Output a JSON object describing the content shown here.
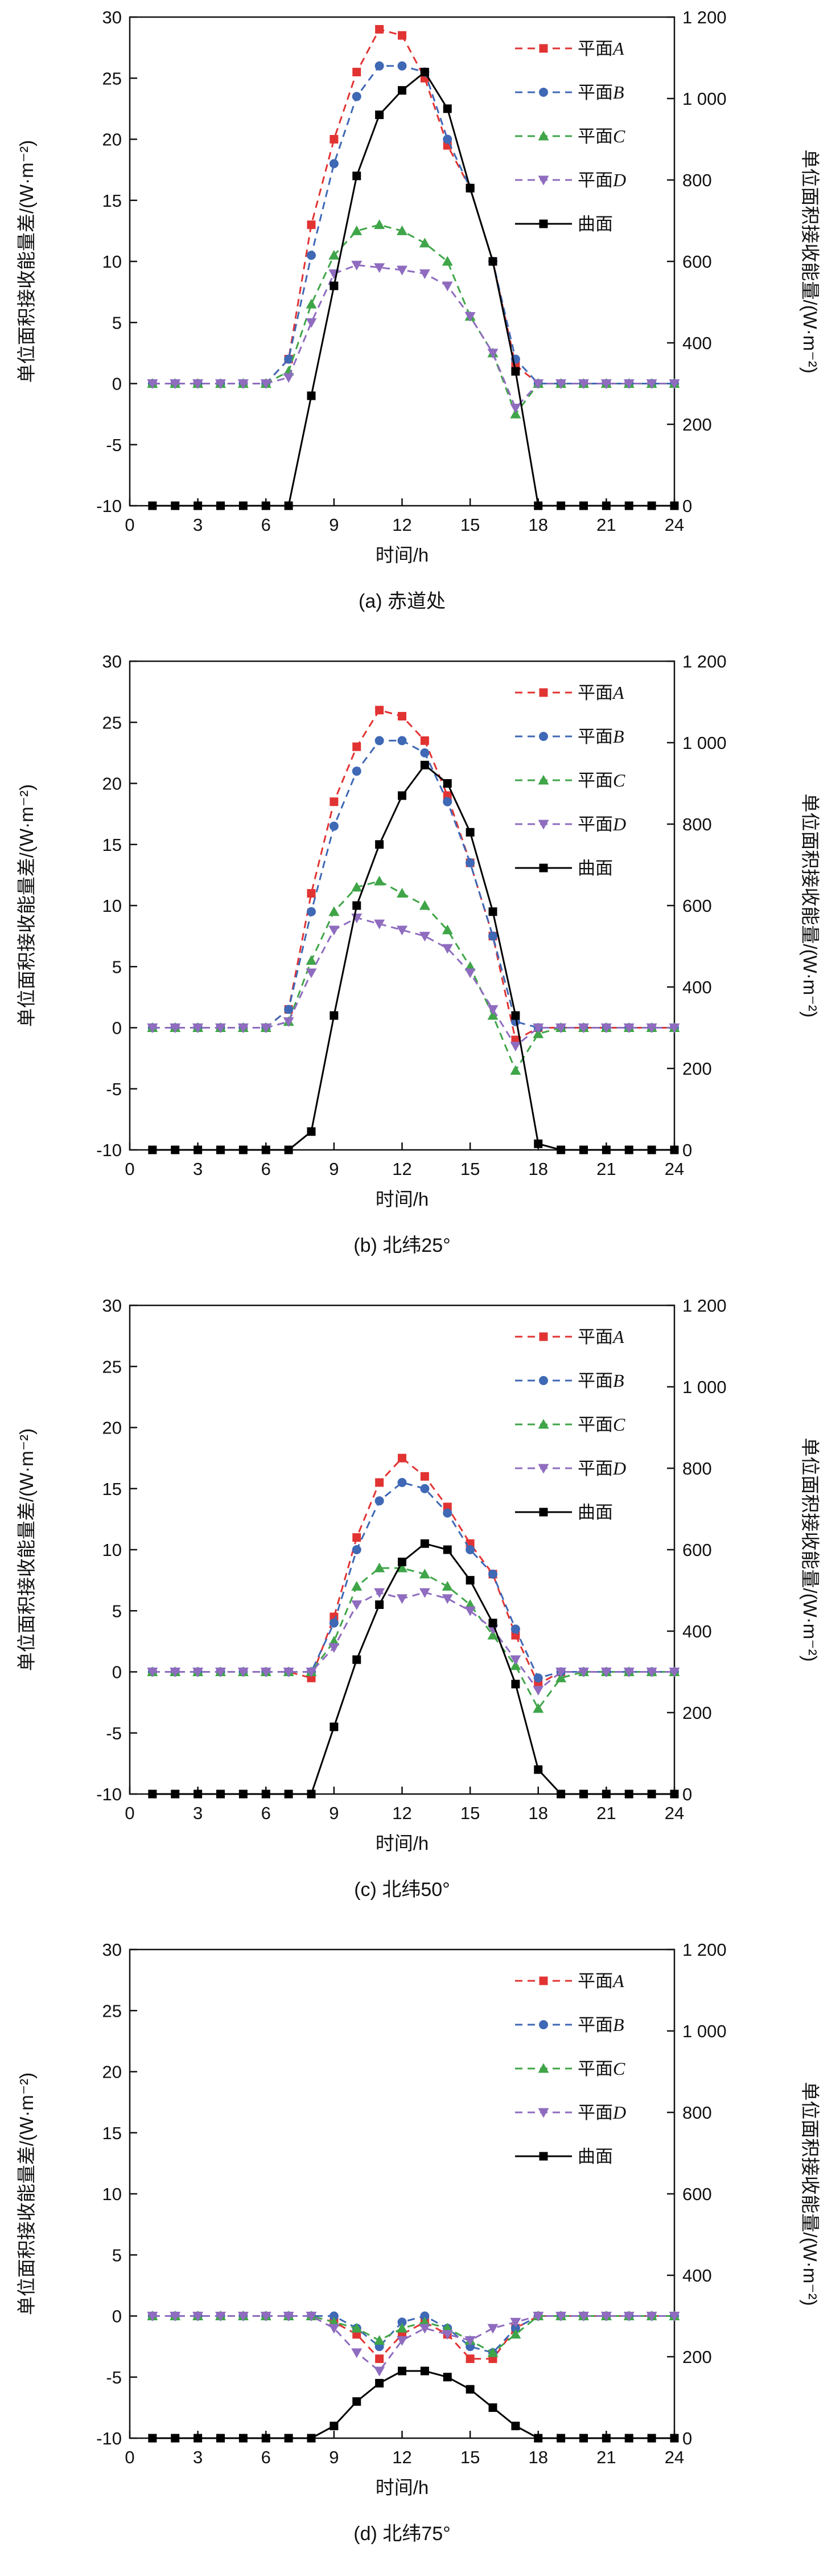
{
  "page": {
    "background": "#ffffff"
  },
  "chart_data": {
    "type": "line",
    "hours": [
      1,
      2,
      3,
      4,
      5,
      6,
      7,
      8,
      9,
      10,
      11,
      12,
      13,
      14,
      15,
      16,
      17,
      18,
      19,
      20,
      21,
      22,
      23,
      24
    ],
    "axis": {
      "x": {
        "label": "时间/h",
        "min": 0,
        "max": 24,
        "ticks": [
          0,
          3,
          6,
          9,
          12,
          15,
          18,
          21,
          24
        ],
        "tick_labels": [
          "0",
          "3",
          "6",
          "9",
          "12",
          "15",
          "18",
          "21",
          "24"
        ]
      },
      "y_left": {
        "label": "单位面积接收能量差/(W·m⁻²)",
        "min": -10,
        "max": 30,
        "ticks": [
          -10,
          -5,
          0,
          5,
          10,
          15,
          20,
          25,
          30
        ],
        "tick_labels": [
          "-10",
          "-5",
          "0",
          "5",
          "10",
          "15",
          "20",
          "25",
          "30"
        ]
      },
      "y_right": {
        "label": "单位面积接收能量/(W·m⁻²)",
        "min": 0,
        "max": 1200,
        "ticks": [
          0,
          200,
          400,
          600,
          800,
          1000,
          1200
        ],
        "tick_labels": [
          "0",
          "200",
          "400",
          "600",
          "800",
          "1 000",
          "1 200"
        ]
      }
    },
    "legend_position": "upper-right-inside",
    "series_meta": [
      {
        "key": "A",
        "label": "平面A",
        "color": "#e23333",
        "marker": "square",
        "line": "dashed",
        "axis": "left"
      },
      {
        "key": "B",
        "label": "平面B",
        "color": "#3f68b5",
        "marker": "circle",
        "line": "dashed",
        "axis": "left"
      },
      {
        "key": "C",
        "label": "平面C",
        "color": "#3fa548",
        "marker": "triangle-up",
        "line": "dashed",
        "axis": "left"
      },
      {
        "key": "D",
        "label": "平面D",
        "color": "#8f6cbf",
        "marker": "triangle-down",
        "line": "dashed",
        "axis": "left"
      },
      {
        "key": "S",
        "label": "曲面",
        "color": "#000000",
        "marker": "square",
        "line": "solid",
        "axis": "right"
      }
    ],
    "charts": [
      {
        "id": "a",
        "caption": "(a) 赤道处",
        "series": {
          "A": [
            0,
            0,
            0,
            0,
            0,
            0,
            2,
            13,
            20,
            25.5,
            29,
            28.5,
            25,
            19.5,
            16,
            10,
            1.5,
            0,
            0,
            0,
            0,
            0,
            0,
            0
          ],
          "B": [
            0,
            0,
            0,
            0,
            0,
            0,
            2,
            10.5,
            18,
            23.5,
            26,
            26,
            25.5,
            20,
            16,
            10,
            2,
            0,
            0,
            0,
            0,
            0,
            0,
            0
          ],
          "C": [
            0,
            0,
            0,
            0,
            0,
            0,
            1,
            6.5,
            10.5,
            12.5,
            13,
            12.5,
            11.5,
            10,
            5.5,
            2.5,
            -2.5,
            0,
            0,
            0,
            0,
            0,
            0,
            0
          ],
          "D": [
            0,
            0,
            0,
            0,
            0,
            0,
            0.5,
            5,
            9,
            9.7,
            9.5,
            9.3,
            9,
            8,
            5.5,
            2.5,
            -2,
            0,
            0,
            0,
            0,
            0,
            0,
            0
          ],
          "S": [
            0,
            0,
            0,
            0,
            0,
            0,
            0,
            270,
            540,
            810,
            960,
            1020,
            1065,
            975,
            780,
            600,
            330,
            0,
            0,
            0,
            0,
            0,
            0,
            0
          ]
        }
      },
      {
        "id": "b",
        "caption": "(b) 北纬25°",
        "series": {
          "A": [
            0,
            0,
            0,
            0,
            0,
            0,
            1.5,
            11,
            18.5,
            23,
            26,
            25.5,
            23.5,
            19,
            13.5,
            7.5,
            -1,
            0,
            0,
            0,
            0,
            0,
            0,
            0
          ],
          "B": [
            0,
            0,
            0,
            0,
            0,
            0,
            1.5,
            9.5,
            16.5,
            21,
            23.5,
            23.5,
            22.5,
            18.5,
            13.5,
            7.5,
            0.5,
            0,
            0,
            0,
            0,
            0,
            0,
            0
          ],
          "C": [
            0,
            0,
            0,
            0,
            0,
            0,
            0.5,
            5.5,
            9.5,
            11.5,
            12,
            11,
            10,
            8,
            5,
            1,
            -3.5,
            -0.5,
            0,
            0,
            0,
            0,
            0,
            0
          ],
          "D": [
            0,
            0,
            0,
            0,
            0,
            0,
            0.5,
            4.5,
            8,
            9,
            8.5,
            8,
            7.5,
            6.5,
            4.5,
            1.5,
            -1.5,
            0,
            0,
            0,
            0,
            0,
            0,
            0
          ],
          "S": [
            0,
            0,
            0,
            0,
            0,
            0,
            0,
            45,
            330,
            600,
            750,
            870,
            945,
            900,
            780,
            585,
            330,
            15,
            0,
            0,
            0,
            0,
            0,
            0
          ]
        }
      },
      {
        "id": "c",
        "caption": "(c) 北纬50°",
        "series": {
          "A": [
            0,
            0,
            0,
            0,
            0,
            0,
            0,
            -0.5,
            4.5,
            11,
            15.5,
            17.5,
            16,
            13.5,
            10.5,
            8,
            3,
            -1,
            0,
            0,
            0,
            0,
            0,
            0
          ],
          "B": [
            0,
            0,
            0,
            0,
            0,
            0,
            0,
            0,
            4,
            10,
            14,
            15.5,
            15,
            13,
            10,
            8,
            3.5,
            -0.5,
            0,
            0,
            0,
            0,
            0,
            0
          ],
          "C": [
            0,
            0,
            0,
            0,
            0,
            0,
            0,
            0,
            2.5,
            7,
            8.5,
            8.5,
            8,
            7,
            5.5,
            3,
            0.5,
            -3,
            -0.5,
            0,
            0,
            0,
            0,
            0
          ],
          "D": [
            0,
            0,
            0,
            0,
            0,
            0,
            0,
            0,
            2,
            5.5,
            6.5,
            6,
            6.5,
            6,
            5,
            3.5,
            1,
            -1.5,
            0,
            0,
            0,
            0,
            0,
            0
          ],
          "S": [
            0,
            0,
            0,
            0,
            0,
            0,
            0,
            0,
            165,
            330,
            465,
            570,
            615,
            600,
            525,
            420,
            270,
            60,
            0,
            0,
            0,
            0,
            0,
            0
          ]
        }
      },
      {
        "id": "d",
        "caption": "(d) 北纬75°",
        "series": {
          "A": [
            0,
            0,
            0,
            0,
            0,
            0,
            0,
            0,
            -0.5,
            -1.5,
            -3.5,
            -1.5,
            -0.5,
            -1.5,
            -3.5,
            -3.5,
            -1,
            0,
            0,
            0,
            0,
            0,
            0,
            0
          ],
          "B": [
            0,
            0,
            0,
            0,
            0,
            0,
            0,
            0,
            0,
            -1,
            -2.5,
            -0.5,
            0,
            -1,
            -2.5,
            -3,
            -1,
            0,
            0,
            0,
            0,
            0,
            0,
            0
          ],
          "C": [
            0,
            0,
            0,
            0,
            0,
            0,
            0,
            0,
            -0.5,
            -1,
            -2,
            -1,
            -0.5,
            -1,
            -2,
            -3,
            -1.5,
            0,
            0,
            0,
            0,
            0,
            0,
            0
          ],
          "D": [
            0,
            0,
            0,
            0,
            0,
            0,
            0,
            0,
            -1,
            -3,
            -4.5,
            -2,
            -1,
            -1.5,
            -2,
            -1,
            -0.5,
            0,
            0,
            0,
            0,
            0,
            0,
            0
          ],
          "S": [
            0,
            0,
            0,
            0,
            0,
            0,
            0,
            0,
            30,
            90,
            135,
            165,
            165,
            150,
            120,
            75,
            30,
            0,
            0,
            0,
            0,
            0,
            0,
            0
          ]
        }
      }
    ]
  }
}
